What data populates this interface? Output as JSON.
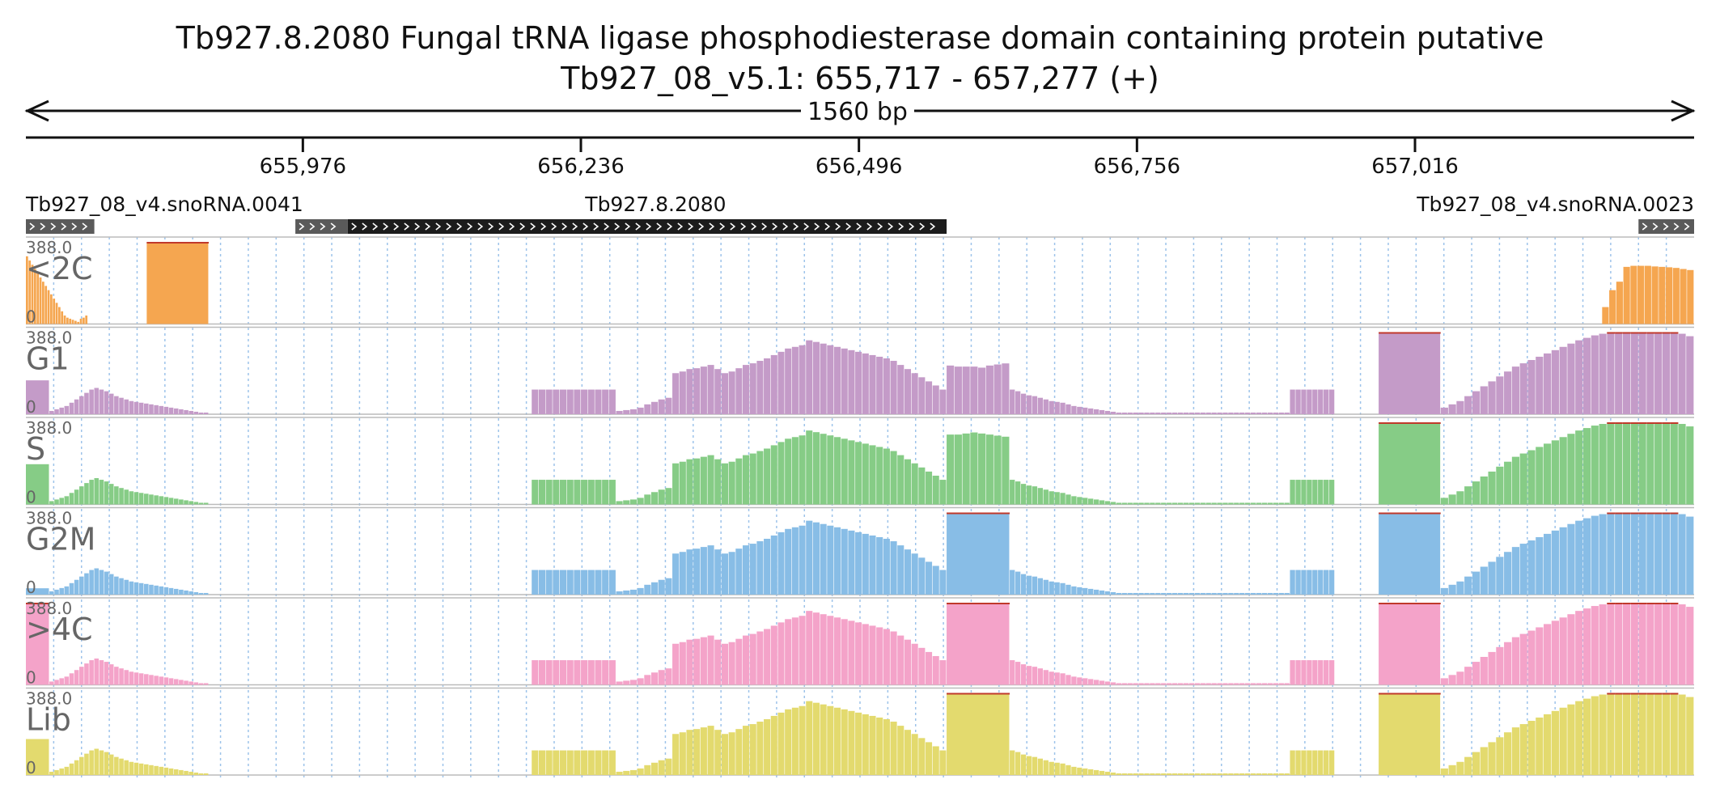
{
  "title": "Tb927.8.2080  Fungal tRNA ligase phosphodiesterase domain containing protein  putative",
  "subtitle": "Tb927_08_v5.1: 655,717 - 657,277 (+)",
  "span_label": "1560 bp",
  "chart_data": {
    "type": "bar",
    "xlim": [
      655717,
      657277
    ],
    "ticks": [
      {
        "value": 655976,
        "label": "655,976"
      },
      {
        "value": 656236,
        "label": "656,236"
      },
      {
        "value": 656496,
        "label": "656,496"
      },
      {
        "value": 656756,
        "label": "656,756"
      },
      {
        "value": 657016,
        "label": "657,016"
      }
    ],
    "features": [
      {
        "name": "Tb927_08_v4.snoRNA.0041",
        "start": 655717,
        "end": 655781,
        "style": "gray"
      },
      {
        "name": "Tb927.8.2080",
        "start": 655969,
        "end": 656018,
        "style": "gray"
      },
      {
        "name": "",
        "start": 656018,
        "end": 656578,
        "style": "black"
      },
      {
        "name": "Tb927_08_v4.snoRNA.0023",
        "start": 657225,
        "end": 657277,
        "style": "gray"
      }
    ],
    "track_scale": {
      "max": "388.0",
      "min": "0"
    },
    "track_segments": [
      [
        655717,
        655888,
        "A"
      ],
      [
        656190,
        656578,
        "B"
      ],
      [
        656578,
        656637,
        "C"
      ],
      [
        656637,
        656941,
        "D"
      ],
      [
        656982,
        657040,
        "C"
      ],
      [
        657040,
        657277,
        "E"
      ]
    ],
    "series": [
      {
        "name": "<2C",
        "color": "#f5a650",
        "max": 388,
        "values": [
          [
            655717,
            655775,
            [
              320,
              300,
              280,
              260,
              240,
              220,
              200,
              180,
              160,
              140,
              120,
              100,
              80,
              60,
              40,
              30,
              25,
              20,
              15,
              10,
              25,
              30,
              40
            ]
          ],
          [
            655775,
            655830,
            [
              0
            ]
          ],
          [
            655830,
            655888,
            [
              388
            ]
          ],
          [
            657191,
            657277,
            [
              80,
              160,
              200,
              270,
              275,
              275,
              275,
              272,
              270,
              268,
              265,
              260,
              255
            ]
          ]
        ]
      },
      {
        "name": "G1",
        "color": "#c49bc8",
        "max": 388,
        "values": [
          [
            655717,
            655739,
            [
              160
            ]
          ],
          [
            655739,
            655888,
            "A"
          ],
          [
            656190,
            656578,
            "B"
          ],
          [
            656578,
            656637,
            [
              230,
              225,
              225,
              225,
              220,
              230,
              235,
              240
            ]
          ],
          [
            656637,
            656941,
            "D"
          ],
          [
            656982,
            657040,
            [
              388
            ]
          ],
          [
            657040,
            657277,
            "E"
          ]
        ]
      },
      {
        "name": "S",
        "color": "#86cc86",
        "max": 388,
        "values": [
          [
            655717,
            655739,
            [
              190
            ]
          ],
          [
            655739,
            655888,
            "A"
          ],
          [
            656190,
            656578,
            "B"
          ],
          [
            656578,
            656637,
            [
              330,
              330,
              335,
              340,
              335,
              330,
              325,
              320
            ]
          ],
          [
            656637,
            656941,
            "D"
          ],
          [
            656982,
            657040,
            [
              388
            ]
          ],
          [
            657040,
            657277,
            "E"
          ]
        ]
      },
      {
        "name": "G2M",
        "color": "#88bde6",
        "max": 388,
        "values": [
          [
            655717,
            655739,
            [
              30
            ]
          ],
          [
            655739,
            655888,
            "A"
          ],
          [
            656190,
            656578,
            "B"
          ],
          [
            656578,
            656637,
            [
              388
            ]
          ],
          [
            656637,
            656941,
            "D"
          ],
          [
            656982,
            657040,
            [
              388
            ]
          ],
          [
            657040,
            657277,
            "E"
          ]
        ]
      },
      {
        "name": ">4C",
        "color": "#f4a3c9",
        "max": 388,
        "values": [
          [
            655717,
            655739,
            [
              388
            ]
          ],
          [
            655739,
            655888,
            "A"
          ],
          [
            656190,
            656578,
            "B"
          ],
          [
            656578,
            656637,
            [
              388
            ]
          ],
          [
            656637,
            656941,
            "D"
          ],
          [
            656982,
            657040,
            [
              388
            ]
          ],
          [
            657040,
            657277,
            "E"
          ]
        ]
      },
      {
        "name": "Lib",
        "color": "#e3da6e",
        "max": 388,
        "values": [
          [
            655717,
            655739,
            [
              170
            ]
          ],
          [
            655739,
            655888,
            "A"
          ],
          [
            656190,
            656578,
            "B"
          ],
          [
            656578,
            656637,
            [
              388
            ]
          ],
          [
            656637,
            656941,
            "D"
          ],
          [
            656982,
            657040,
            [
              388
            ]
          ],
          [
            657040,
            657277,
            "E"
          ]
        ]
      }
    ],
    "shape_profiles": {
      "A": [
        0.04,
        0.06,
        0.08,
        0.1,
        0.14,
        0.18,
        0.22,
        0.26,
        0.3,
        0.32,
        0.3,
        0.28,
        0.25,
        0.22,
        0.2,
        0.18,
        0.16,
        0.15,
        0.14,
        0.13,
        0.12,
        0.11,
        0.1,
        0.09,
        0.08,
        0.07,
        0.06,
        0.05,
        0.04,
        0.03,
        0.02,
        0.02
      ],
      "B": [
        0.3,
        0.3,
        0.3,
        0.3,
        0.3,
        0.3,
        0.3,
        0.3,
        0.3,
        0.3,
        0.3,
        0.3,
        0.04,
        0.05,
        0.06,
        0.08,
        0.12,
        0.15,
        0.18,
        0.2,
        0.5,
        0.52,
        0.55,
        0.56,
        0.58,
        0.6,
        0.55,
        0.5,
        0.52,
        0.56,
        0.6,
        0.62,
        0.65,
        0.68,
        0.72,
        0.76,
        0.8,
        0.82,
        0.84,
        0.9,
        0.88,
        0.86,
        0.84,
        0.82,
        0.8,
        0.78,
        0.76,
        0.74,
        0.72,
        0.7,
        0.68,
        0.65,
        0.6,
        0.55,
        0.5,
        0.45,
        0.4,
        0.35,
        0.3
      ],
      "C": [
        0.65,
        0.6,
        0.55,
        0.5,
        0.45,
        0.4,
        0.35,
        0.3
      ],
      "D": [
        0.3,
        0.28,
        0.25,
        0.23,
        0.22,
        0.2,
        0.18,
        0.16,
        0.15,
        0.14,
        0.12,
        0.1,
        0.09,
        0.08,
        0.07,
        0.06,
        0.05,
        0.04,
        0.03,
        0.02,
        0.02,
        0.02,
        0.02,
        0.02,
        0.02,
        0.02,
        0.02,
        0.02,
        0.02,
        0.02,
        0.02,
        0.02,
        0.02,
        0.02,
        0.02,
        0.02,
        0.02,
        0.02,
        0.02,
        0.02,
        0.02,
        0.02,
        0.02,
        0.02,
        0.02,
        0.02,
        0.02,
        0.02,
        0.02,
        0.02,
        0.3,
        0.3,
        0.3,
        0.3,
        0.3,
        0.3,
        0.3,
        0.3
      ],
      "E": [
        0.08,
        0.12,
        0.16,
        0.22,
        0.28,
        0.34,
        0.4,
        0.46,
        0.52,
        0.58,
        0.62,
        0.66,
        0.7,
        0.74,
        0.78,
        0.82,
        0.86,
        0.9,
        0.93,
        0.96,
        0.98,
        1,
        1,
        1,
        1,
        1,
        1,
        1,
        1,
        1,
        0.98,
        0.95
      ]
    }
  }
}
